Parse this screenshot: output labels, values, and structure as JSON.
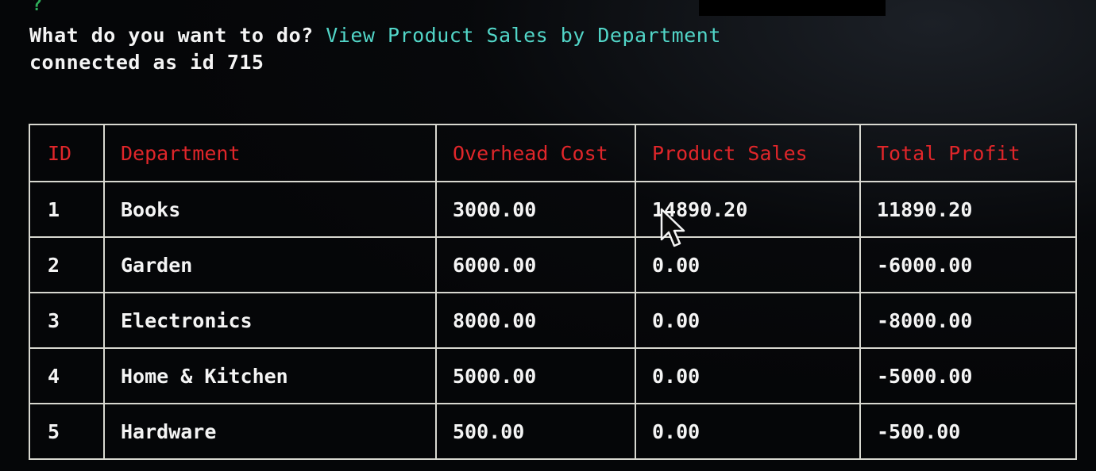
{
  "terminal": {
    "prompt_mark": "?",
    "question": "What do you want to do?",
    "answer": "View Product Sales by Department",
    "status_line": "connected as id 715"
  },
  "table": {
    "headers": [
      "ID",
      "Department",
      "Overhead Cost",
      "Product Sales",
      "Total Profit"
    ],
    "rows": [
      [
        "1",
        "Books",
        "3000.00",
        "14890.20",
        "11890.20"
      ],
      [
        "2",
        "Garden",
        "6000.00",
        "0.00",
        "-6000.00"
      ],
      [
        "3",
        "Electronics",
        "8000.00",
        "0.00",
        "-8000.00"
      ],
      [
        "4",
        "Home & Kitchen",
        "5000.00",
        "0.00",
        "-5000.00"
      ],
      [
        "5",
        "Hardware",
        "500.00",
        "0.00",
        "-500.00"
      ]
    ]
  },
  "colors": {
    "header_text": "#e0262a",
    "answer_text": "#52d6c8",
    "border": "#d8d8d0",
    "background": "#050608"
  },
  "icons": {
    "cursor": "mouse-pointer-icon"
  }
}
